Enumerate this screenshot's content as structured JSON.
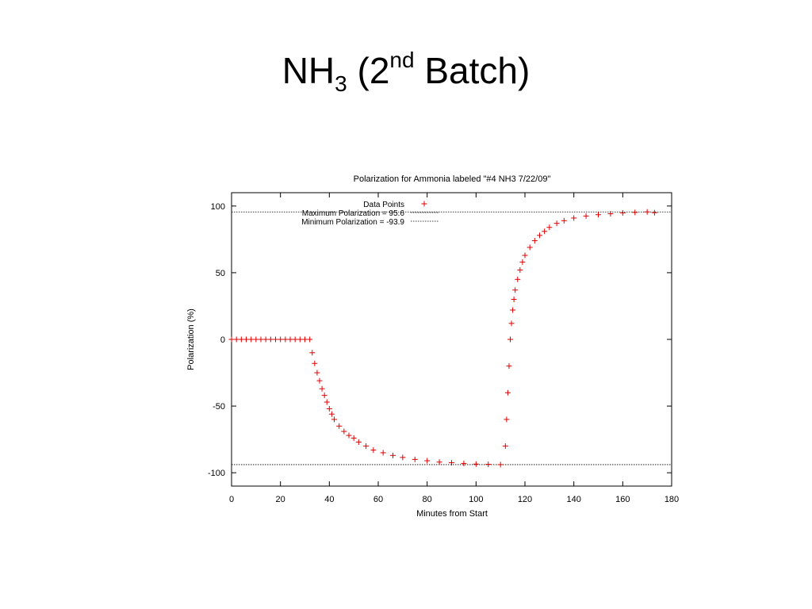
{
  "slide": {
    "title_main": "NH",
    "title_sub": "3",
    "title_open": " (2",
    "title_sup": "nd",
    "title_close": " Batch)"
  },
  "colors": {
    "data_points": "#e00000",
    "reference_lines": "#000000"
  },
  "chart_data": {
    "type": "scatter",
    "title": "Polarization for Ammonia labeled \"#4 NH3 7/22/09\"",
    "xlabel": "Minutes from Start",
    "ylabel": "Polarization (%)",
    "xlim": [
      0,
      180
    ],
    "ylim": [
      -110,
      110
    ],
    "xticks": [
      0,
      20,
      40,
      60,
      80,
      100,
      120,
      140,
      160,
      180
    ],
    "yticks": [
      -100,
      -50,
      0,
      50,
      100
    ],
    "grid": false,
    "legend_position": "top-left",
    "series": [
      {
        "name": "Data Points",
        "marker": "plus",
        "x": [
          0,
          2,
          4,
          6,
          8,
          10,
          12,
          14,
          16,
          18,
          20,
          22,
          24,
          26,
          28,
          30,
          32,
          33,
          34,
          35,
          36,
          37,
          38,
          39,
          40,
          41,
          42,
          44,
          46,
          48,
          50,
          52,
          55,
          58,
          62,
          66,
          70,
          75,
          80,
          85,
          90,
          95,
          100,
          105,
          110,
          112,
          112.5,
          113,
          113.5,
          114,
          114.5,
          115,
          115.5,
          116,
          117,
          118,
          119,
          120,
          122,
          124,
          126,
          128,
          130,
          133,
          136,
          140,
          145,
          150,
          155,
          160,
          165,
          170,
          173
        ],
        "y": [
          0,
          0,
          0,
          0,
          0,
          0,
          0,
          0,
          0,
          0,
          0,
          0,
          0,
          0,
          0,
          0,
          0,
          -10,
          -18,
          -25,
          -31,
          -37,
          -42,
          -47,
          -52,
          -56,
          -60,
          -65,
          -69,
          -72,
          -74,
          -77,
          -80,
          -83,
          -85,
          -87,
          -88.5,
          -90,
          -91,
          -92,
          -92.5,
          -93,
          -93.5,
          -93.7,
          -93.9,
          -80,
          -60,
          -40,
          -20,
          0,
          12,
          22,
          30,
          37,
          45,
          52,
          58,
          63,
          69,
          74,
          78,
          81,
          84,
          87,
          89,
          91,
          92.5,
          93.5,
          94.2,
          94.8,
          95.2,
          95.6,
          95
        ]
      },
      {
        "name": "Maximum Polarization = 95.6",
        "type": "hline",
        "y": 95.6
      },
      {
        "name": "Minimum Polarization = -93.9",
        "type": "hline",
        "y": -93.9
      }
    ]
  }
}
